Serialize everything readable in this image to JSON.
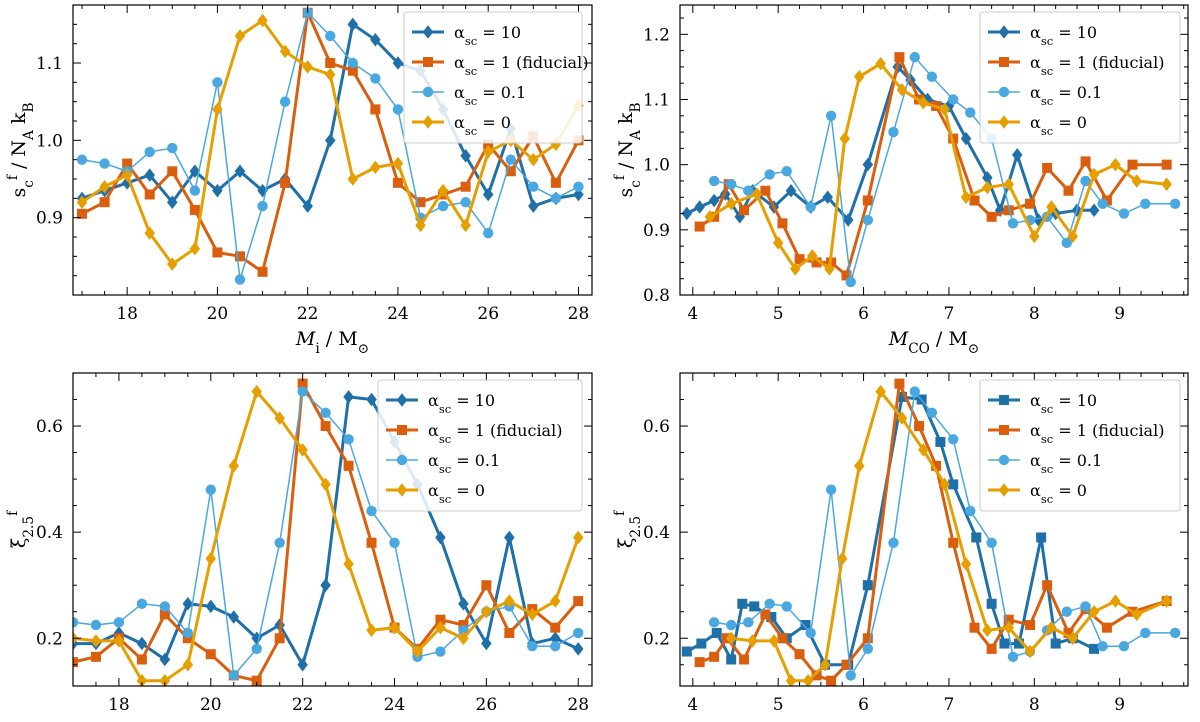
{
  "figure": {
    "description_free": true
  },
  "chart_data": [
    {
      "type": "line",
      "panel": "top-left",
      "xlabel": "M_i / M_⊙",
      "ylabel": "s_c^f / N_A k_B",
      "xlim": [
        16.8,
        28.3
      ],
      "ylim": [
        0.8,
        1.175
      ],
      "xticks": [
        18,
        20,
        22,
        24,
        26,
        28
      ],
      "yticks": [
        0.9,
        1.0,
        1.1
      ],
      "xtick_labels": [
        "18",
        "20",
        "22",
        "24",
        "26",
        "28"
      ],
      "ytick_labels": [
        "0.9",
        "1.0",
        "1.1"
      ],
      "legend_position": "top-right",
      "series": [
        {
          "name": "α_sc = 10",
          "color": "#1f6fa8",
          "marker": "diamond",
          "width": 3,
          "x": [
            17,
            17.5,
            18,
            18.5,
            19,
            19.5,
            20,
            20.5,
            21,
            21.5,
            22,
            22.5,
            23,
            23.5,
            24,
            24.5,
            25,
            25.5,
            26,
            26.5,
            27,
            27.5,
            28
          ],
          "y": [
            0.925,
            0.935,
            0.945,
            0.955,
            0.92,
            0.96,
            0.935,
            0.96,
            0.935,
            0.95,
            0.915,
            1.0,
            1.15,
            1.13,
            1.1,
            1.09,
            1.04,
            0.98,
            0.93,
            1.015,
            0.915,
            0.925,
            0.93
          ]
        },
        {
          "name": "α_sc = 1 (fiducial)",
          "color": "#d95f0e",
          "marker": "square",
          "width": 3,
          "x": [
            17,
            17.5,
            18,
            18.5,
            19,
            19.5,
            20,
            20.5,
            21,
            21.5,
            22,
            22.5,
            23,
            23.5,
            24,
            24.5,
            25,
            25.5,
            26,
            26.5,
            27,
            27.5,
            28
          ],
          "y": [
            0.905,
            0.92,
            0.97,
            0.93,
            0.96,
            0.91,
            0.855,
            0.85,
            0.83,
            0.945,
            1.165,
            1.1,
            1.09,
            1.04,
            0.945,
            0.92,
            0.93,
            0.94,
            0.995,
            0.96,
            1.005,
            0.945,
            1.0
          ]
        },
        {
          "name": "α_sc = 0.1",
          "color": "#4aa8e0",
          "marker": "circle",
          "width": 1.5,
          "x": [
            17,
            17.5,
            18,
            18.5,
            19,
            19.5,
            20,
            20.5,
            21,
            21.5,
            22,
            22.5,
            23,
            23.5,
            24,
            24.5,
            25,
            25.5,
            26,
            26.5,
            27,
            27.5,
            28
          ],
          "y": [
            0.975,
            0.97,
            0.96,
            0.985,
            0.99,
            0.935,
            1.075,
            0.82,
            0.915,
            1.05,
            1.165,
            1.135,
            1.1,
            1.08,
            1.04,
            0.9,
            0.915,
            0.92,
            0.88,
            0.975,
            0.94,
            0.925,
            0.94
          ]
        },
        {
          "name": "α_sc = 0",
          "color": "#e69f00",
          "marker": "diamond",
          "width": 3,
          "x": [
            17,
            17.5,
            18,
            18.5,
            19,
            19.5,
            20,
            20.5,
            21,
            21.5,
            22,
            22.5,
            23,
            23.5,
            24,
            24.5,
            25,
            25.5,
            26,
            26.5,
            27,
            27.5,
            28
          ],
          "y": [
            0.92,
            0.94,
            0.955,
            0.88,
            0.84,
            0.86,
            1.04,
            1.135,
            1.155,
            1.115,
            1.095,
            1.085,
            0.95,
            0.965,
            0.97,
            0.89,
            0.935,
            0.89,
            0.985,
            1.0,
            0.975,
            0.995,
            1.045
          ]
        }
      ]
    },
    {
      "type": "line",
      "panel": "top-right",
      "xlabel": "M_CO / M_⊙",
      "ylabel": "s_c^f / N_A k_B",
      "xlim": [
        3.85,
        9.8
      ],
      "ylim": [
        0.8,
        1.245
      ],
      "xticks": [
        4,
        5,
        6,
        7,
        8,
        9
      ],
      "yticks": [
        0.8,
        0.9,
        1.0,
        1.1,
        1.2
      ],
      "xtick_labels": [
        "4",
        "5",
        "6",
        "7",
        "8",
        "9"
      ],
      "ytick_labels": [
        "0.8",
        "0.9",
        "1.0",
        "1.1",
        "1.2"
      ],
      "legend_position": "top-right",
      "series": [
        {
          "name": "α_sc = 10",
          "color": "#1f6fa8",
          "marker": "diamond",
          "width": 3,
          "x": [
            3.93,
            4.08,
            4.25,
            4.38,
            4.55,
            4.7,
            4.95,
            5.15,
            5.38,
            5.58,
            5.82,
            6.05,
            6.4,
            6.55,
            6.75,
            7.0,
            7.2,
            7.45,
            7.6,
            7.8,
            8.05,
            8.25,
            8.5,
            8.7
          ],
          "y": [
            0.925,
            0.935,
            0.945,
            0.955,
            0.92,
            0.96,
            0.935,
            0.96,
            0.935,
            0.95,
            0.915,
            1.0,
            1.15,
            1.13,
            1.1,
            1.09,
            1.04,
            0.98,
            0.93,
            1.015,
            0.915,
            0.925,
            0.93,
            0.93
          ]
        },
        {
          "name": "α_sc = 1 (fiducial)",
          "color": "#d95f0e",
          "marker": "square",
          "width": 3,
          "x": [
            4.08,
            4.25,
            4.42,
            4.6,
            4.85,
            5.05,
            5.25,
            5.45,
            5.62,
            5.8,
            6.05,
            6.42,
            6.65,
            6.85,
            7.05,
            7.3,
            7.5,
            7.7,
            7.95,
            8.15,
            8.4,
            8.6,
            8.85,
            9.15,
            9.55
          ],
          "y": [
            0.905,
            0.92,
            0.97,
            0.93,
            0.96,
            0.91,
            0.855,
            0.85,
            0.85,
            0.83,
            0.945,
            1.165,
            1.1,
            1.09,
            1.04,
            0.945,
            0.92,
            0.93,
            0.94,
            0.995,
            0.96,
            1.005,
            0.945,
            1.0,
            1.0
          ]
        },
        {
          "name": "α_sc = 0.1",
          "color": "#4aa8e0",
          "marker": "circle",
          "width": 1.5,
          "x": [
            4.25,
            4.45,
            4.65,
            4.9,
            5.1,
            5.38,
            5.62,
            5.85,
            6.05,
            6.35,
            6.6,
            6.8,
            7.05,
            7.25,
            7.5,
            7.75,
            7.95,
            8.15,
            8.38,
            8.6,
            8.8,
            9.05,
            9.3,
            9.65
          ],
          "y": [
            0.975,
            0.97,
            0.96,
            0.985,
            0.99,
            0.935,
            1.075,
            0.82,
            0.915,
            1.05,
            1.165,
            1.135,
            1.1,
            1.08,
            1.04,
            0.91,
            0.915,
            0.92,
            0.88,
            0.975,
            0.94,
            0.925,
            0.94,
            0.94
          ]
        },
        {
          "name": "α_sc = 0",
          "color": "#e69f00",
          "marker": "diamond",
          "width": 3,
          "x": [
            4.2,
            4.45,
            4.75,
            5.0,
            5.2,
            5.4,
            5.6,
            5.78,
            5.95,
            6.2,
            6.45,
            6.7,
            6.95,
            7.2,
            7.45,
            7.7,
            8.0,
            8.2,
            8.45,
            8.7,
            8.95,
            9.2,
            9.55
          ],
          "y": [
            0.92,
            0.94,
            0.955,
            0.88,
            0.84,
            0.86,
            0.84,
            1.04,
            1.135,
            1.155,
            1.115,
            1.095,
            1.085,
            0.95,
            0.965,
            0.97,
            0.89,
            0.935,
            0.89,
            0.985,
            1.0,
            0.975,
            0.97
          ]
        }
      ]
    },
    {
      "type": "line",
      "panel": "bottom-left",
      "xlabel": "M_i / M_⊙",
      "ylabel": "ξ_2.5^f",
      "xlim": [
        17.0,
        28.3
      ],
      "ylim": [
        0.11,
        0.7
      ],
      "xticks": [
        18,
        20,
        22,
        24,
        26,
        28
      ],
      "yticks": [
        0.2,
        0.4,
        0.6
      ],
      "xtick_labels": [
        "18",
        "20",
        "22",
        "24",
        "26",
        "28"
      ],
      "ytick_labels": [
        "0.2",
        "0.4",
        "0.6"
      ],
      "legend_position": "top-right",
      "series": [
        {
          "name": "α_sc = 10",
          "color": "#1f6fa8",
          "marker": "diamond",
          "width": 3,
          "x": [
            17,
            17.5,
            18,
            18.5,
            19,
            19.5,
            20,
            20.5,
            21,
            21.5,
            22,
            22.5,
            23,
            23.5,
            24,
            24.5,
            25,
            25.5,
            26,
            26.5,
            27,
            27.5,
            28
          ],
          "y": [
            0.19,
            0.19,
            0.21,
            0.19,
            0.16,
            0.265,
            0.26,
            0.24,
            0.2,
            0.225,
            0.15,
            0.3,
            0.655,
            0.65,
            0.57,
            0.49,
            0.39,
            0.265,
            0.19,
            0.39,
            0.19,
            0.2,
            0.18
          ]
        },
        {
          "name": "α_sc = 1 (fiducial)",
          "color": "#d95f0e",
          "marker": "square",
          "width": 3,
          "x": [
            17,
            17.5,
            18,
            18.5,
            19,
            19.5,
            20,
            20.5,
            21,
            21.5,
            22,
            22.5,
            23,
            23.5,
            24,
            24.5,
            25,
            25.5,
            26,
            26.5,
            27,
            27.5,
            28
          ],
          "y": [
            0.155,
            0.165,
            0.2,
            0.16,
            0.245,
            0.2,
            0.17,
            0.13,
            0.12,
            0.2,
            0.68,
            0.6,
            0.525,
            0.38,
            0.22,
            0.18,
            0.235,
            0.225,
            0.3,
            0.21,
            0.255,
            0.22,
            0.27
          ]
        },
        {
          "name": "α_sc = 0.1",
          "color": "#4aa8e0",
          "marker": "circle",
          "width": 1.5,
          "x": [
            17,
            17.5,
            18,
            18.5,
            19,
            19.5,
            20,
            20.5,
            21,
            21.5,
            22,
            22.5,
            23,
            23.5,
            24,
            24.5,
            25,
            25.5,
            26,
            26.5,
            27,
            27.5,
            28
          ],
          "y": [
            0.23,
            0.225,
            0.23,
            0.265,
            0.26,
            0.21,
            0.48,
            0.13,
            0.18,
            0.38,
            0.665,
            0.625,
            0.575,
            0.44,
            0.38,
            0.165,
            0.175,
            0.215,
            0.25,
            0.26,
            0.185,
            0.185,
            0.21
          ]
        },
        {
          "name": "α_sc = 0",
          "color": "#e69f00",
          "marker": "diamond",
          "width": 3,
          "x": [
            17,
            17.5,
            18,
            18.5,
            19,
            19.5,
            20,
            20.5,
            21,
            21.5,
            22,
            22.5,
            23,
            23.5,
            24,
            24.5,
            25,
            25.5,
            26,
            26.5,
            27,
            27.5,
            28
          ],
          "y": [
            0.2,
            0.195,
            0.195,
            0.12,
            0.12,
            0.15,
            0.35,
            0.525,
            0.665,
            0.615,
            0.555,
            0.49,
            0.34,
            0.215,
            0.22,
            0.175,
            0.22,
            0.2,
            0.25,
            0.27,
            0.245,
            0.27,
            0.39
          ]
        }
      ]
    },
    {
      "type": "line",
      "panel": "bottom-right",
      "xlabel": "M_CO / M_⊙",
      "ylabel": "ξ_2.5^f",
      "xlim": [
        3.85,
        9.8
      ],
      "ylim": [
        0.11,
        0.7
      ],
      "xticks": [
        4,
        5,
        6,
        7,
        8,
        9
      ],
      "yticks": [
        0.2,
        0.4,
        0.6
      ],
      "xtick_labels": [
        "4",
        "5",
        "6",
        "7",
        "8",
        "9"
      ],
      "ytick_labels": [
        "0.2",
        "0.4",
        "0.6"
      ],
      "legend_position": "top-right",
      "series": [
        {
          "name": "α_sc = 10",
          "color": "#1f6fa8",
          "marker": "square",
          "width": 3,
          "x": [
            3.93,
            4.1,
            4.28,
            4.45,
            4.58,
            4.72,
            4.92,
            5.1,
            5.32,
            5.55,
            5.82,
            6.05,
            6.45,
            6.68,
            6.9,
            7.05,
            7.32,
            7.5,
            7.65,
            7.82,
            8.08,
            8.25,
            8.45,
            8.7
          ],
          "y": [
            0.175,
            0.19,
            0.21,
            0.16,
            0.265,
            0.26,
            0.24,
            0.2,
            0.225,
            0.15,
            0.15,
            0.3,
            0.655,
            0.65,
            0.57,
            0.49,
            0.39,
            0.265,
            0.19,
            0.19,
            0.39,
            0.19,
            0.2,
            0.18
          ]
        },
        {
          "name": "α_sc = 1 (fiducial)",
          "color": "#d95f0e",
          "marker": "square",
          "width": 3,
          "x": [
            4.08,
            4.25,
            4.4,
            4.6,
            4.85,
            5.05,
            5.25,
            5.45,
            5.62,
            5.8,
            6.05,
            6.42,
            6.65,
            6.85,
            7.05,
            7.3,
            7.5,
            7.7,
            7.95,
            8.15,
            8.4,
            8.6,
            8.85,
            9.15,
            9.55
          ],
          "y": [
            0.155,
            0.165,
            0.2,
            0.16,
            0.245,
            0.2,
            0.17,
            0.13,
            0.12,
            0.15,
            0.2,
            0.68,
            0.6,
            0.525,
            0.38,
            0.22,
            0.18,
            0.235,
            0.225,
            0.3,
            0.21,
            0.255,
            0.22,
            0.25,
            0.27
          ]
        },
        {
          "name": "α_sc = 0.1",
          "color": "#4aa8e0",
          "marker": "circle",
          "width": 1.5,
          "x": [
            4.25,
            4.45,
            4.65,
            4.9,
            5.1,
            5.38,
            5.62,
            5.85,
            6.05,
            6.35,
            6.6,
            6.8,
            7.05,
            7.25,
            7.5,
            7.75,
            7.95,
            8.15,
            8.38,
            8.6,
            8.8,
            9.05,
            9.3,
            9.65
          ],
          "y": [
            0.23,
            0.225,
            0.23,
            0.265,
            0.26,
            0.21,
            0.48,
            0.13,
            0.18,
            0.38,
            0.665,
            0.625,
            0.575,
            0.44,
            0.38,
            0.165,
            0.175,
            0.215,
            0.25,
            0.26,
            0.185,
            0.185,
            0.21,
            0.21
          ]
        },
        {
          "name": "α_sc = 0",
          "color": "#e69f00",
          "marker": "diamond",
          "width": 3,
          "x": [
            4.45,
            4.7,
            4.95,
            5.15,
            5.35,
            5.55,
            5.75,
            5.95,
            6.2,
            6.45,
            6.7,
            6.95,
            7.2,
            7.45,
            7.7,
            7.95,
            8.2,
            8.45,
            8.7,
            8.95,
            9.2,
            9.55
          ],
          "y": [
            0.2,
            0.195,
            0.195,
            0.12,
            0.12,
            0.15,
            0.35,
            0.525,
            0.665,
            0.615,
            0.555,
            0.49,
            0.34,
            0.215,
            0.22,
            0.175,
            0.22,
            0.2,
            0.25,
            0.27,
            0.245,
            0.27
          ]
        }
      ]
    }
  ]
}
